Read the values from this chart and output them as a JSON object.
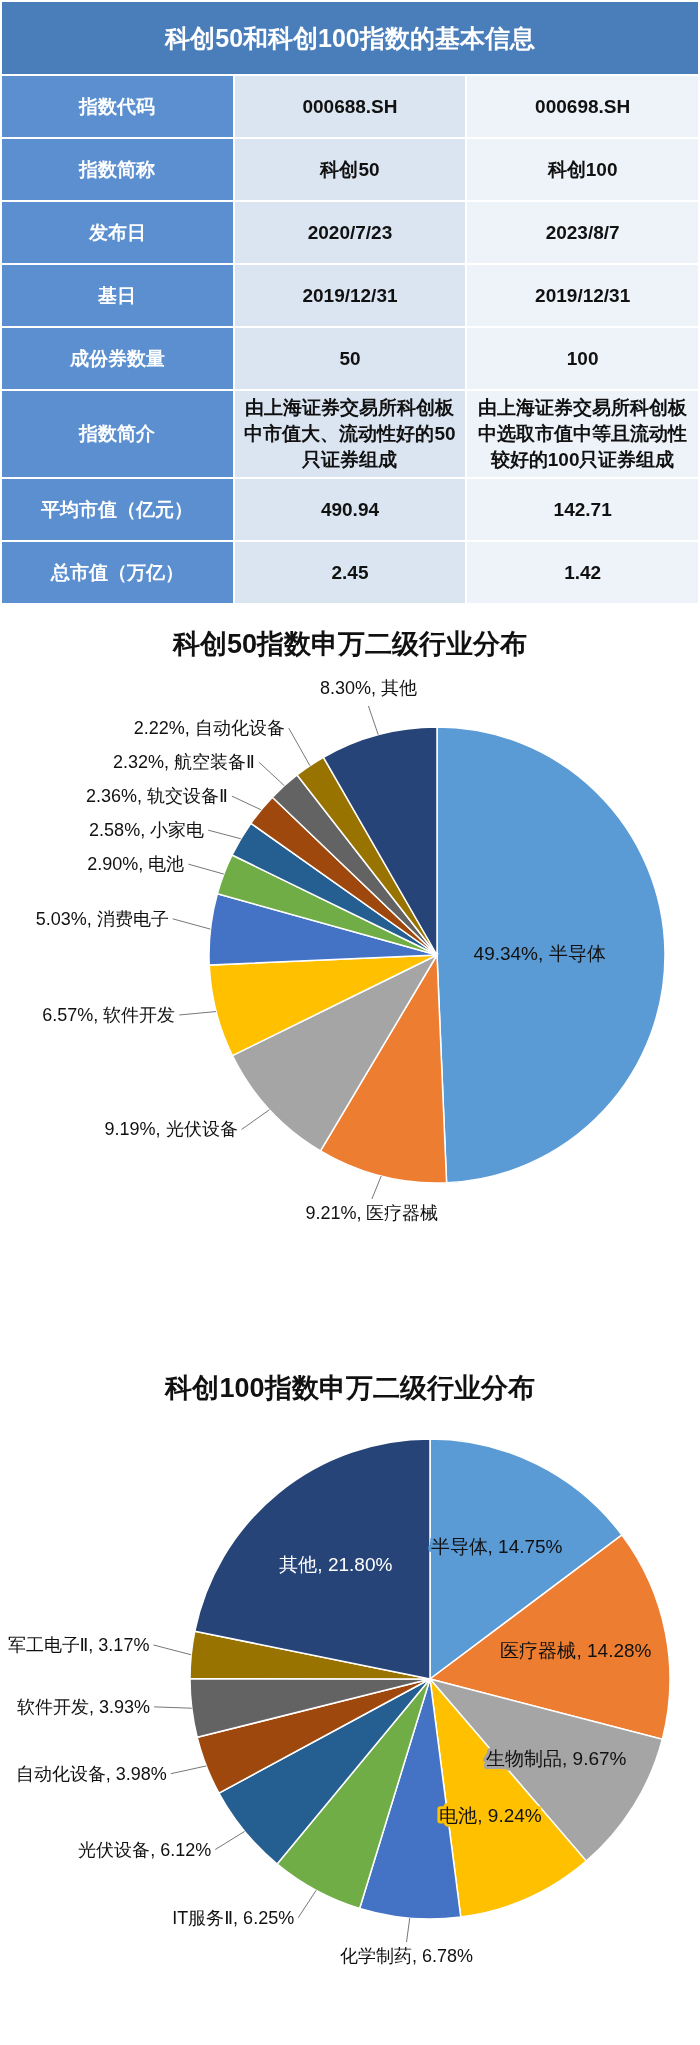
{
  "chart_data": [
    {
      "type": "other",
      "title": "科创50和科创100指数的基本信息",
      "annotations": [
        "指数代码",
        "000688.SH",
        "000698.SH",
        "指数简称",
        "科创50",
        "科创100",
        "发布日",
        "2020/7/23",
        "2023/8/7",
        "基日",
        "2019/12/31",
        "2019/12/31",
        "成份券数量",
        "50",
        "100",
        "指数简介",
        "由上海证券交易所科创板中市值大、流动性好的50只证券组成",
        "由上海证券交易所科创板中选取市值中等且流动性较好的100只证券组成",
        "平均市值（亿元）",
        "490.94",
        "142.71",
        "总市值（万亿）",
        "2.45",
        "1.42"
      ]
    },
    {
      "type": "pie",
      "title": "科创50指数申万二级行业分布",
      "categories": [
        "半导体",
        "医疗器械",
        "光伏设备",
        "软件开发",
        "消费电子",
        "电池",
        "小家电",
        "轨交设备Ⅱ",
        "航空装备Ⅱ",
        "自动化设备",
        "其他"
      ],
      "values": [
        49.34,
        9.21,
        9.19,
        6.57,
        5.03,
        2.9,
        2.58,
        2.36,
        2.32,
        2.22,
        8.3
      ],
      "value_labels": [
        "49.34%",
        "9.21%",
        "9.19%",
        "6.57%",
        "5.03%",
        "2.90%",
        "2.58%",
        "2.36%",
        "2.32%",
        "2.22%",
        "8.30%"
      ],
      "colors": [
        "#5b9bd5",
        "#ed7d31",
        "#a5a5a5",
        "#ffc000",
        "#4472c4",
        "#70ad47",
        "#255e91",
        "#9e480e",
        "#636363",
        "#997300",
        "#264478"
      ]
    },
    {
      "type": "pie",
      "title": "科创100指数申万二级行业分布",
      "categories": [
        "半导体",
        "医疗器械",
        "生物制品",
        "电池",
        "化学制药",
        "IT服务Ⅱ",
        "光伏设备",
        "自动化设备",
        "软件开发",
        "军工电子Ⅱ",
        "其他"
      ],
      "values": [
        14.75,
        14.28,
        9.67,
        9.24,
        6.78,
        6.25,
        6.12,
        3.98,
        3.93,
        3.17,
        21.8
      ],
      "value_labels": [
        "14.75%",
        "14.28%",
        "9.67%",
        "9.24%",
        "6.78%",
        "6.25%",
        "6.12%",
        "3.98%",
        "3.93%",
        "3.17%",
        "21.80%"
      ],
      "colors": [
        "#5b9bd5",
        "#ed7d31",
        "#a5a5a5",
        "#ffc000",
        "#4472c4",
        "#70ad47",
        "#255e91",
        "#9e480e",
        "#636363",
        "#997300",
        "#264478"
      ]
    }
  ]
}
